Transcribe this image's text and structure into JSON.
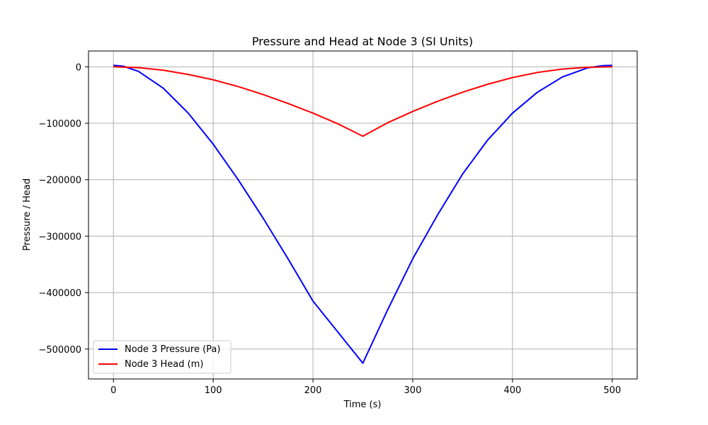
{
  "chart_data": {
    "type": "line",
    "title": "Pressure and Head at Node 3 (SI Units)",
    "xlabel": "Time (s)",
    "ylabel": "Pressure / Head",
    "xlim": [
      -25,
      525
    ],
    "ylim": [
      -553000,
      28000
    ],
    "x_ticks": [
      0,
      100,
      200,
      300,
      400,
      500
    ],
    "x_tick_labels": [
      "0",
      "100",
      "200",
      "300",
      "400",
      "500"
    ],
    "y_ticks": [
      0,
      -100000,
      -200000,
      -300000,
      -400000,
      -500000
    ],
    "y_tick_labels": [
      "0",
      "−100000",
      "−200000",
      "−300000",
      "−400000",
      "−500000"
    ],
    "grid": true,
    "legend_position": "lower-left",
    "series": [
      {
        "name": "Node 3 Pressure (Pa)",
        "color": "#0000ff",
        "x": [
          0,
          10,
          25,
          50,
          75,
          100,
          125,
          150,
          175,
          200,
          225,
          250,
          275,
          300,
          325,
          350,
          375,
          400,
          425,
          450,
          475,
          490,
          500
        ],
        "y": [
          2500,
          1000,
          -8000,
          -38000,
          -82000,
          -137000,
          -200000,
          -268000,
          -340000,
          -415000,
          -470000,
          -525000,
          -430000,
          -340000,
          -262000,
          -190000,
          -130000,
          -82000,
          -45000,
          -18000,
          -2000,
          2000,
          2500
        ]
      },
      {
        "name": "Node 3 Head (m)",
        "color": "#ff0000",
        "x": [
          0,
          25,
          50,
          75,
          100,
          125,
          150,
          175,
          200,
          225,
          250,
          275,
          300,
          325,
          350,
          375,
          400,
          425,
          450,
          475,
          500
        ],
        "y": [
          0,
          -1500,
          -6000,
          -13500,
          -23000,
          -35000,
          -49000,
          -65000,
          -82000,
          -101000,
          -123000,
          -99000,
          -79000,
          -61000,
          -45000,
          -31000,
          -19000,
          -10000,
          -4000,
          -800,
          0
        ]
      }
    ]
  }
}
